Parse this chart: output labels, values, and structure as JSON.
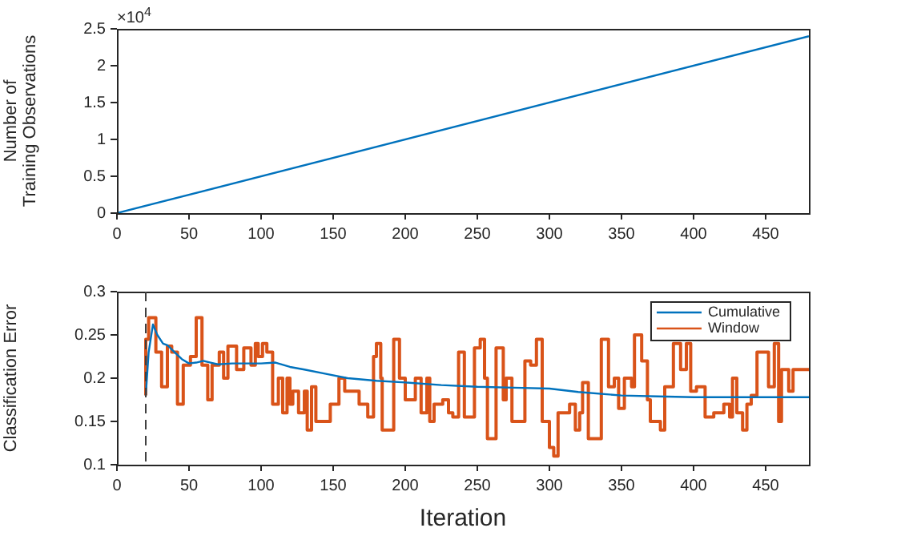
{
  "chart_data": [
    {
      "type": "line",
      "ylabel": "Number of Training Observations",
      "annotations": [
        "×10$^{4}$"
      ],
      "xlim": [
        0,
        480
      ],
      "xticks": [
        0,
        50,
        100,
        150,
        200,
        250,
        300,
        350,
        400,
        450
      ],
      "ylim": [
        0,
        2.5
      ],
      "yticks": [
        0,
        0.5,
        1,
        1.5,
        2,
        2.5
      ],
      "grid": false,
      "legend": false,
      "series": [
        {
          "color": "#0072bd",
          "x": [
            0,
            480
          ],
          "values": [
            0,
            2.4
          ]
        }
      ]
    },
    {
      "type": "line",
      "xlabel": "Iteration",
      "ylabel": "Classification Error",
      "xlim": [
        0,
        480
      ],
      "xticks": [
        0,
        50,
        100,
        150,
        200,
        250,
        300,
        350,
        400,
        450
      ],
      "ylim": [
        0.1,
        0.3
      ],
      "yticks": [
        0.1,
        0.15,
        0.2,
        0.25,
        0.3
      ],
      "grid": false,
      "legend": "top right",
      "ref_lines": [
        {
          "axis": "x",
          "value": 20,
          "color": "#404040",
          "line_style": "dashed"
        }
      ],
      "series": [
        {
          "name": "Cumulative",
          "color": "#0072bd",
          "x": [
            20,
            22,
            25,
            28,
            32,
            35,
            40,
            45,
            50,
            55,
            60,
            65,
            70,
            80,
            90,
            100,
            110,
            120,
            130,
            145,
            160,
            180,
            200,
            225,
            250,
            275,
            300,
            320,
            350,
            375,
            400,
            440,
            480
          ],
          "values": [
            0.18,
            0.23,
            0.262,
            0.25,
            0.24,
            0.238,
            0.23,
            0.222,
            0.217,
            0.218,
            0.22,
            0.218,
            0.216,
            0.217,
            0.217,
            0.217,
            0.218,
            0.213,
            0.21,
            0.205,
            0.2,
            0.197,
            0.195,
            0.192,
            0.19,
            0.189,
            0.188,
            0.184,
            0.18,
            0.179,
            0.178,
            0.178,
            0.178
          ]
        },
        {
          "name": "Window",
          "type": "step",
          "color": "#d95319",
          "x": [
            20,
            22,
            27,
            31,
            35,
            38,
            42,
            46,
            51,
            55,
            59,
            63,
            66,
            71,
            74,
            77,
            83,
            88,
            93,
            96,
            98,
            101,
            104,
            108,
            112,
            115,
            118,
            120,
            122,
            126,
            130,
            132,
            135,
            138,
            148,
            154,
            158,
            168,
            174,
            178,
            180,
            183,
            184,
            192,
            196,
            200,
            207,
            211,
            215,
            217,
            220,
            226,
            230,
            233,
            237,
            241,
            248,
            252,
            255,
            257,
            263,
            268,
            270,
            274,
            283,
            287,
            291,
            295,
            300,
            303,
            306,
            314,
            318,
            321,
            323,
            327,
            336,
            341,
            345,
            348,
            352,
            357,
            359,
            364,
            368,
            370,
            377,
            380,
            386,
            391,
            395,
            398,
            402,
            408,
            414,
            421,
            425,
            427,
            430,
            434,
            437,
            440,
            444,
            452,
            456,
            459,
            461,
            466,
            469,
            471,
            477,
            480
          ],
          "values": [
            0.18,
            0.245,
            0.27,
            0.23,
            0.19,
            0.237,
            0.23,
            0.17,
            0.215,
            0.225,
            0.27,
            0.215,
            0.175,
            0.215,
            0.23,
            0.2,
            0.237,
            0.21,
            0.235,
            0.215,
            0.24,
            0.225,
            0.24,
            0.23,
            0.17,
            0.2,
            0.16,
            0.2,
            0.17,
            0.185,
            0.16,
            0.185,
            0.14,
            0.19,
            0.15,
            0.17,
            0.2,
            0.185,
            0.17,
            0.155,
            0.225,
            0.24,
            0.2,
            0.14,
            0.245,
            0.2,
            0.175,
            0.2,
            0.16,
            0.2,
            0.15,
            0.17,
            0.175,
            0.16,
            0.155,
            0.23,
            0.155,
            0.235,
            0.245,
            0.2,
            0.13,
            0.235,
            0.175,
            0.2,
            0.15,
            0.22,
            0.215,
            0.245,
            0.15,
            0.12,
            0.11,
            0.16,
            0.17,
            0.14,
            0.16,
            0.195,
            0.13,
            0.245,
            0.19,
            0.2,
            0.165,
            0.2,
            0.19,
            0.25,
            0.22,
            0.175,
            0.15,
            0.14,
            0.19,
            0.24,
            0.21,
            0.24,
            0.185,
            0.19,
            0.155,
            0.16,
            0.17,
            0.155,
            0.2,
            0.16,
            0.14,
            0.17,
            0.18,
            0.23,
            0.19,
            0.24,
            0.15,
            0.21,
            0.185,
            0.21,
            0.21,
            0.21
          ]
        }
      ]
    }
  ]
}
